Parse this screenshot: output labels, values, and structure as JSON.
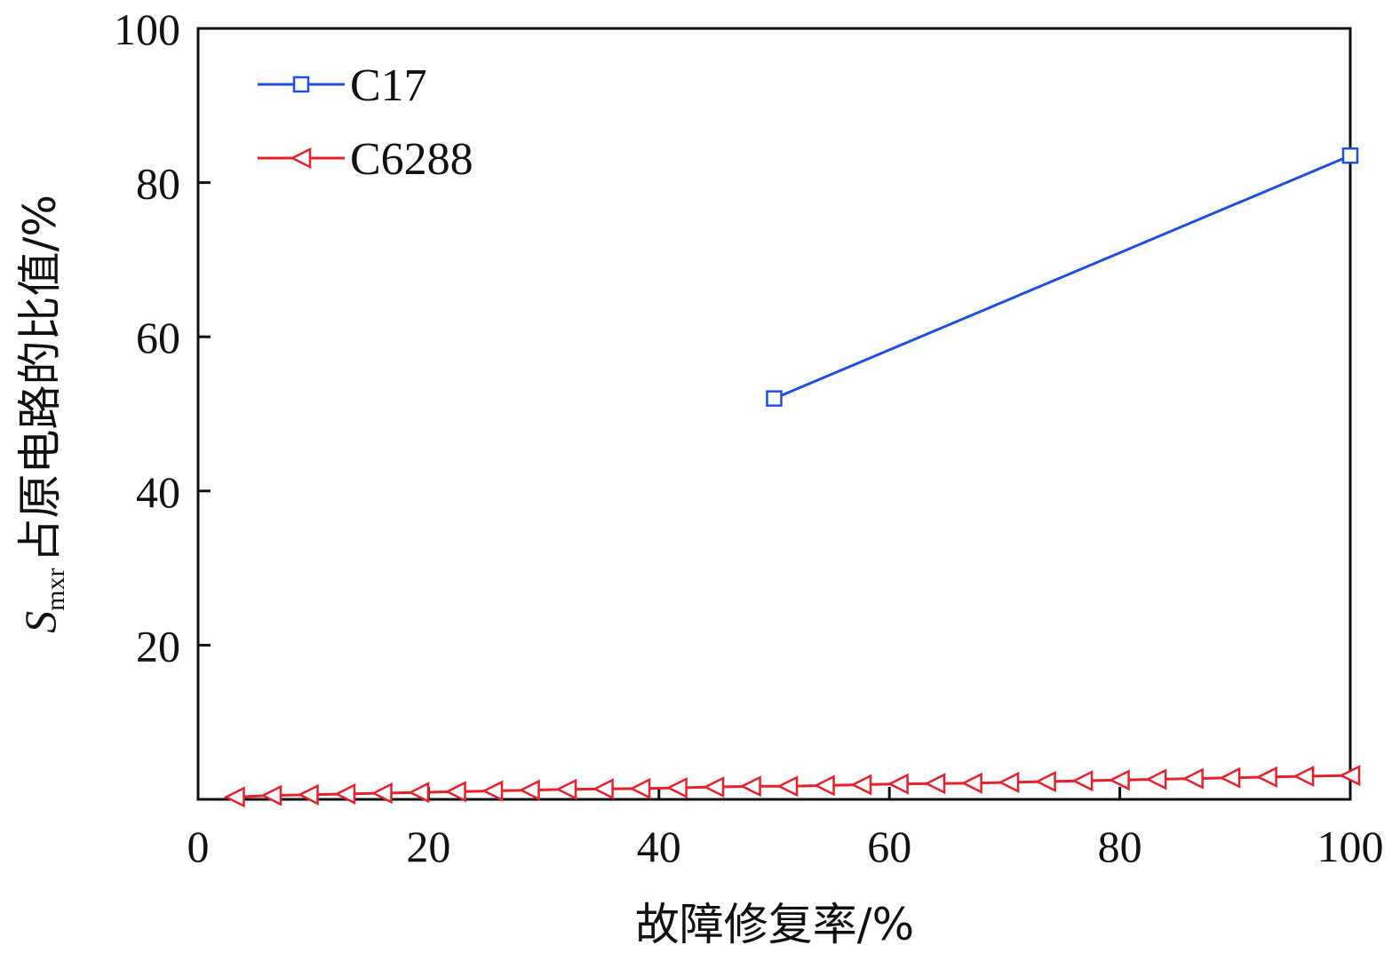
{
  "chart_data": {
    "type": "line",
    "xlabel": "故障修复率/%",
    "ylabel": {
      "symbol": "S",
      "subscript": "mxr",
      "text": "占原电路的比值/%"
    },
    "xlim": [
      0,
      100
    ],
    "ylim": [
      0,
      100
    ],
    "xticks": [
      "0",
      "20",
      "40",
      "60",
      "80",
      "100"
    ],
    "yticks": [
      "20",
      "40",
      "60",
      "80",
      "100"
    ],
    "grid": false,
    "legend_position": "top-left",
    "series": [
      {
        "name": "C17",
        "color": "#1f4fe0",
        "marker": "square",
        "x": [
          50,
          100
        ],
        "y": [
          52,
          83.5
        ]
      },
      {
        "name": "C6288",
        "color": "#e8202a",
        "marker": "triangle-left",
        "x": [
          3.2,
          6.4,
          9.6,
          12.8,
          16.0,
          19.2,
          22.4,
          25.6,
          28.8,
          32.0,
          35.2,
          38.4,
          41.6,
          44.8,
          48.0,
          51.2,
          54.4,
          57.6,
          60.8,
          64.0,
          67.2,
          70.4,
          73.6,
          76.8,
          80.0,
          83.2,
          86.4,
          89.6,
          92.8,
          96.0,
          100
        ],
        "y": [
          0.3,
          0.5,
          0.6,
          0.7,
          0.8,
          0.9,
          1.0,
          1.1,
          1.2,
          1.3,
          1.35,
          1.4,
          1.5,
          1.6,
          1.7,
          1.7,
          1.8,
          1.9,
          2.0,
          2.05,
          2.1,
          2.2,
          2.3,
          2.4,
          2.5,
          2.6,
          2.7,
          2.8,
          2.9,
          3.0,
          3.1
        ]
      }
    ]
  }
}
